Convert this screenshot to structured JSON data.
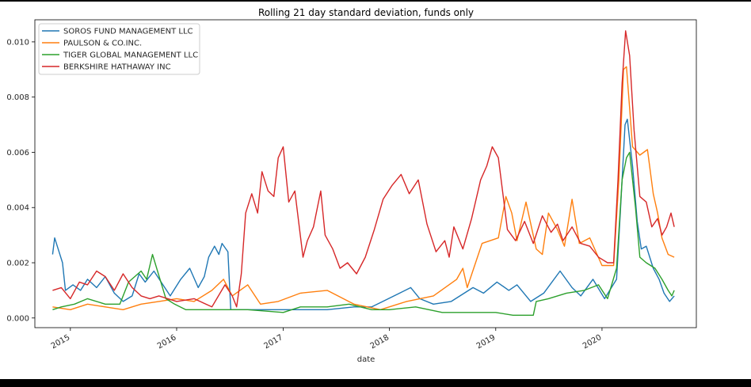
{
  "chart_data": {
    "type": "line",
    "title": "Rolling 21 day standard deviation, funds only",
    "xlabel": "date",
    "ylabel": "",
    "xlim": [
      "2014-09-01",
      "2020-11-20"
    ],
    "ylim": [
      -0.00035,
      0.0108
    ],
    "x_ticks": [
      "2015",
      "2016",
      "2017",
      "2018",
      "2019",
      "2020"
    ],
    "y_ticks": [
      "0.000",
      "0.002",
      "0.004",
      "0.006",
      "0.008",
      "0.010"
    ],
    "grid": false,
    "legend_position": "top-left",
    "series": [
      {
        "name": "SOROS FUND MANAGEMENT LLC",
        "color": "#1f77b4",
        "points": [
          [
            "2014-11-01",
            0.0023
          ],
          [
            "2014-11-08",
            0.0029
          ],
          [
            "2014-11-20",
            0.0025
          ],
          [
            "2014-12-05",
            0.002
          ],
          [
            "2014-12-15",
            0.001
          ],
          [
            "2015-01-10",
            0.0012
          ],
          [
            "2015-02-05",
            0.001
          ],
          [
            "2015-03-01",
            0.0014
          ],
          [
            "2015-04-01",
            0.0011
          ],
          [
            "2015-05-01",
            0.0015
          ],
          [
            "2015-06-01",
            0.0009
          ],
          [
            "2015-07-01",
            0.0006
          ],
          [
            "2015-08-01",
            0.0008
          ],
          [
            "2015-08-25",
            0.0016
          ],
          [
            "2015-09-15",
            0.0013
          ],
          [
            "2015-10-15",
            0.0017
          ],
          [
            "2015-11-15",
            0.0012
          ],
          [
            "2015-12-10",
            0.0008
          ],
          [
            "2016-01-15",
            0.0014
          ],
          [
            "2016-02-15",
            0.0018
          ],
          [
            "2016-03-15",
            0.0011
          ],
          [
            "2016-04-05",
            0.0015
          ],
          [
            "2016-04-20",
            0.0022
          ],
          [
            "2016-05-10",
            0.0026
          ],
          [
            "2016-05-25",
            0.0023
          ],
          [
            "2016-06-05",
            0.0027
          ],
          [
            "2016-06-25",
            0.0024
          ],
          [
            "2016-07-05",
            0.0003
          ],
          [
            "2016-09-01",
            0.0003
          ],
          [
            "2016-12-01",
            0.0003
          ],
          [
            "2017-03-01",
            0.0003
          ],
          [
            "2017-06-01",
            0.0003
          ],
          [
            "2017-09-01",
            0.0004
          ],
          [
            "2017-11-01",
            0.0004
          ],
          [
            "2018-02-05",
            0.0009
          ],
          [
            "2018-03-15",
            0.0011
          ],
          [
            "2018-04-15",
            0.0007
          ],
          [
            "2018-06-01",
            0.0005
          ],
          [
            "2018-08-01",
            0.0006
          ],
          [
            "2018-10-15",
            0.0011
          ],
          [
            "2018-11-20",
            0.0009
          ],
          [
            "2019-01-05",
            0.0013
          ],
          [
            "2019-02-15",
            0.001
          ],
          [
            "2019-03-15",
            0.0012
          ],
          [
            "2019-05-01",
            0.0006
          ],
          [
            "2019-06-15",
            0.0009
          ],
          [
            "2019-08-10",
            0.0017
          ],
          [
            "2019-09-20",
            0.0011
          ],
          [
            "2019-10-20",
            0.0008
          ],
          [
            "2019-12-01",
            0.0014
          ],
          [
            "2020-01-10",
            0.0007
          ],
          [
            "2020-02-20",
            0.0014
          ],
          [
            "2020-03-05",
            0.004
          ],
          [
            "2020-03-20",
            0.007
          ],
          [
            "2020-03-28",
            0.0072
          ],
          [
            "2020-04-15",
            0.0055
          ],
          [
            "2020-05-01",
            0.0035
          ],
          [
            "2020-05-15",
            0.0025
          ],
          [
            "2020-06-01",
            0.0026
          ],
          [
            "2020-06-25",
            0.0018
          ],
          [
            "2020-07-15",
            0.0014
          ],
          [
            "2020-08-01",
            0.0009
          ],
          [
            "2020-08-20",
            0.0006
          ],
          [
            "2020-09-05",
            0.0008
          ]
        ]
      },
      {
        "name": "PAULSON & CO.INC.",
        "color": "#ff7f0e",
        "points": [
          [
            "2014-11-01",
            0.0004
          ],
          [
            "2015-01-01",
            0.0003
          ],
          [
            "2015-03-01",
            0.0005
          ],
          [
            "2015-05-01",
            0.0004
          ],
          [
            "2015-07-01",
            0.0003
          ],
          [
            "2015-09-01",
            0.0005
          ],
          [
            "2015-11-01",
            0.0006
          ],
          [
            "2016-01-01",
            0.0007
          ],
          [
            "2016-03-01",
            0.0006
          ],
          [
            "2016-05-01",
            0.001
          ],
          [
            "2016-06-10",
            0.0014
          ],
          [
            "2016-07-10",
            0.0008
          ],
          [
            "2016-09-01",
            0.0012
          ],
          [
            "2016-10-15",
            0.0005
          ],
          [
            "2016-12-15",
            0.0006
          ],
          [
            "2017-03-01",
            0.0009
          ],
          [
            "2017-06-01",
            0.001
          ],
          [
            "2017-09-01",
            0.0005
          ],
          [
            "2017-12-01",
            0.0003
          ],
          [
            "2018-03-01",
            0.0006
          ],
          [
            "2018-06-01",
            0.0008
          ],
          [
            "2018-08-20",
            0.0014
          ],
          [
            "2018-09-10",
            0.0018
          ],
          [
            "2018-09-25",
            0.0011
          ],
          [
            "2018-11-15",
            0.0027
          ],
          [
            "2019-01-10",
            0.0029
          ],
          [
            "2019-02-05",
            0.0044
          ],
          [
            "2019-02-25",
            0.0038
          ],
          [
            "2019-03-15",
            0.0028
          ],
          [
            "2019-04-15",
            0.0042
          ],
          [
            "2019-05-20",
            0.0025
          ],
          [
            "2019-06-10",
            0.0023
          ],
          [
            "2019-07-01",
            0.0038
          ],
          [
            "2019-08-01",
            0.0032
          ],
          [
            "2019-08-25",
            0.0026
          ],
          [
            "2019-09-20",
            0.0043
          ],
          [
            "2019-10-15",
            0.0027
          ],
          [
            "2019-11-20",
            0.0029
          ],
          [
            "2020-01-01",
            0.0019
          ],
          [
            "2020-02-10",
            0.0019
          ],
          [
            "2020-02-28",
            0.005
          ],
          [
            "2020-03-15",
            0.009
          ],
          [
            "2020-03-25",
            0.0091
          ],
          [
            "2020-04-15",
            0.0062
          ],
          [
            "2020-05-10",
            0.0059
          ],
          [
            "2020-06-05",
            0.0061
          ],
          [
            "2020-06-25",
            0.0045
          ],
          [
            "2020-07-10",
            0.0038
          ],
          [
            "2020-07-25",
            0.0029
          ],
          [
            "2020-08-15",
            0.0023
          ],
          [
            "2020-09-05",
            0.0022
          ]
        ]
      },
      {
        "name": "TIGER GLOBAL MANAGEMENT LLC",
        "color": "#2ca02c",
        "points": [
          [
            "2014-11-01",
            0.0003
          ],
          [
            "2014-12-01",
            0.0004
          ],
          [
            "2015-01-15",
            0.0005
          ],
          [
            "2015-03-01",
            0.0007
          ],
          [
            "2015-05-01",
            0.0005
          ],
          [
            "2015-06-20",
            0.0005
          ],
          [
            "2015-07-20",
            0.0013
          ],
          [
            "2015-09-01",
            0.0017
          ],
          [
            "2015-09-20",
            0.0014
          ],
          [
            "2015-10-10",
            0.0023
          ],
          [
            "2015-11-05",
            0.0014
          ],
          [
            "2015-11-25",
            0.0007
          ],
          [
            "2015-12-25",
            0.0005
          ],
          [
            "2016-02-01",
            0.0003
          ],
          [
            "2016-06-01",
            0.0003
          ],
          [
            "2016-09-01",
            0.0003
          ],
          [
            "2017-01-01",
            0.0002
          ],
          [
            "2017-03-01",
            0.0004
          ],
          [
            "2017-06-01",
            0.0004
          ],
          [
            "2017-08-15",
            0.0005
          ],
          [
            "2017-11-01",
            0.0003
          ],
          [
            "2018-01-01",
            0.0003
          ],
          [
            "2018-04-01",
            0.0004
          ],
          [
            "2018-07-01",
            0.0002
          ],
          [
            "2018-10-01",
            0.0002
          ],
          [
            "2019-01-01",
            0.0002
          ],
          [
            "2019-03-01",
            0.0001
          ],
          [
            "2019-05-10",
            0.0001
          ],
          [
            "2019-05-20",
            0.0006
          ],
          [
            "2019-07-01",
            0.0007
          ],
          [
            "2019-09-01",
            0.0009
          ],
          [
            "2019-11-01",
            0.001
          ],
          [
            "2019-12-20",
            0.0012
          ],
          [
            "2020-01-20",
            0.0007
          ],
          [
            "2020-02-20",
            0.0018
          ],
          [
            "2020-03-10",
            0.005
          ],
          [
            "2020-03-25",
            0.0058
          ],
          [
            "2020-04-05",
            0.006
          ],
          [
            "2020-04-25",
            0.004
          ],
          [
            "2020-05-10",
            0.0022
          ],
          [
            "2020-06-01",
            0.002
          ],
          [
            "2020-07-01",
            0.0018
          ],
          [
            "2020-07-25",
            0.0014
          ],
          [
            "2020-08-15",
            0.001
          ],
          [
            "2020-08-28",
            0.0008
          ],
          [
            "2020-09-05",
            0.001
          ]
        ]
      },
      {
        "name": "BERKSHIRE HATHAWAY INC",
        "color": "#d62728",
        "points": [
          [
            "2014-11-01",
            0.001
          ],
          [
            "2014-12-01",
            0.0011
          ],
          [
            "2015-01-01",
            0.0007
          ],
          [
            "2015-02-01",
            0.0013
          ],
          [
            "2015-03-01",
            0.0012
          ],
          [
            "2015-04-01",
            0.0017
          ],
          [
            "2015-05-01",
            0.0015
          ],
          [
            "2015-06-01",
            0.001
          ],
          [
            "2015-07-01",
            0.0016
          ],
          [
            "2015-08-01",
            0.0011
          ],
          [
            "2015-09-01",
            0.0008
          ],
          [
            "2015-10-01",
            0.0007
          ],
          [
            "2015-11-01",
            0.0008
          ],
          [
            "2016-01-01",
            0.0006
          ],
          [
            "2016-03-01",
            0.0007
          ],
          [
            "2016-05-01",
            0.0004
          ],
          [
            "2016-06-15",
            0.0012
          ],
          [
            "2016-07-10",
            0.0008
          ],
          [
            "2016-07-25",
            0.0004
          ],
          [
            "2016-08-10",
            0.0016
          ],
          [
            "2016-08-25",
            0.0038
          ],
          [
            "2016-09-15",
            0.0045
          ],
          [
            "2016-10-05",
            0.0038
          ],
          [
            "2016-10-20",
            0.0053
          ],
          [
            "2016-11-10",
            0.0046
          ],
          [
            "2016-11-30",
            0.0044
          ],
          [
            "2016-12-15",
            0.0058
          ],
          [
            "2017-01-01",
            0.0062
          ],
          [
            "2017-01-20",
            0.0042
          ],
          [
            "2017-02-10",
            0.0046
          ],
          [
            "2017-03-10",
            0.0022
          ],
          [
            "2017-03-25",
            0.0028
          ],
          [
            "2017-04-15",
            0.0033
          ],
          [
            "2017-05-10",
            0.0046
          ],
          [
            "2017-05-25",
            0.003
          ],
          [
            "2017-06-20",
            0.0025
          ],
          [
            "2017-07-15",
            0.0018
          ],
          [
            "2017-08-10",
            0.002
          ],
          [
            "2017-09-10",
            0.0016
          ],
          [
            "2017-10-10",
            0.0022
          ],
          [
            "2017-11-10",
            0.0032
          ],
          [
            "2017-12-10",
            0.0043
          ],
          [
            "2018-01-10",
            0.0048
          ],
          [
            "2018-02-10",
            0.0052
          ],
          [
            "2018-03-10",
            0.0045
          ],
          [
            "2018-04-10",
            0.005
          ],
          [
            "2018-05-10",
            0.0034
          ],
          [
            "2018-06-10",
            0.0024
          ],
          [
            "2018-07-10",
            0.0028
          ],
          [
            "2018-07-25",
            0.0022
          ],
          [
            "2018-08-10",
            0.0033
          ],
          [
            "2018-09-10",
            0.0025
          ],
          [
            "2018-10-10",
            0.0036
          ],
          [
            "2018-11-10",
            0.005
          ],
          [
            "2018-12-01",
            0.0055
          ],
          [
            "2018-12-20",
            0.0062
          ],
          [
            "2019-01-10",
            0.0058
          ],
          [
            "2019-02-10",
            0.0032
          ],
          [
            "2019-03-10",
            0.0028
          ],
          [
            "2019-04-10",
            0.0035
          ],
          [
            "2019-05-10",
            0.0027
          ],
          [
            "2019-06-10",
            0.0037
          ],
          [
            "2019-07-10",
            0.0031
          ],
          [
            "2019-08-01",
            0.0034
          ],
          [
            "2019-08-20",
            0.0028
          ],
          [
            "2019-09-20",
            0.0033
          ],
          [
            "2019-10-20",
            0.0027
          ],
          [
            "2019-11-20",
            0.0026
          ],
          [
            "2019-12-20",
            0.0022
          ],
          [
            "2020-01-20",
            0.002
          ],
          [
            "2020-02-10",
            0.002
          ],
          [
            "2020-02-25",
            0.005
          ],
          [
            "2020-03-10",
            0.0085
          ],
          [
            "2020-03-22",
            0.0104
          ],
          [
            "2020-04-05",
            0.0095
          ],
          [
            "2020-04-20",
            0.0068
          ],
          [
            "2020-05-10",
            0.0044
          ],
          [
            "2020-06-01",
            0.0042
          ],
          [
            "2020-06-20",
            0.0033
          ],
          [
            "2020-07-10",
            0.0036
          ],
          [
            "2020-07-25",
            0.003
          ],
          [
            "2020-08-10",
            0.0033
          ],
          [
            "2020-08-25",
            0.0038
          ],
          [
            "2020-09-05",
            0.0033
          ]
        ]
      }
    ]
  }
}
